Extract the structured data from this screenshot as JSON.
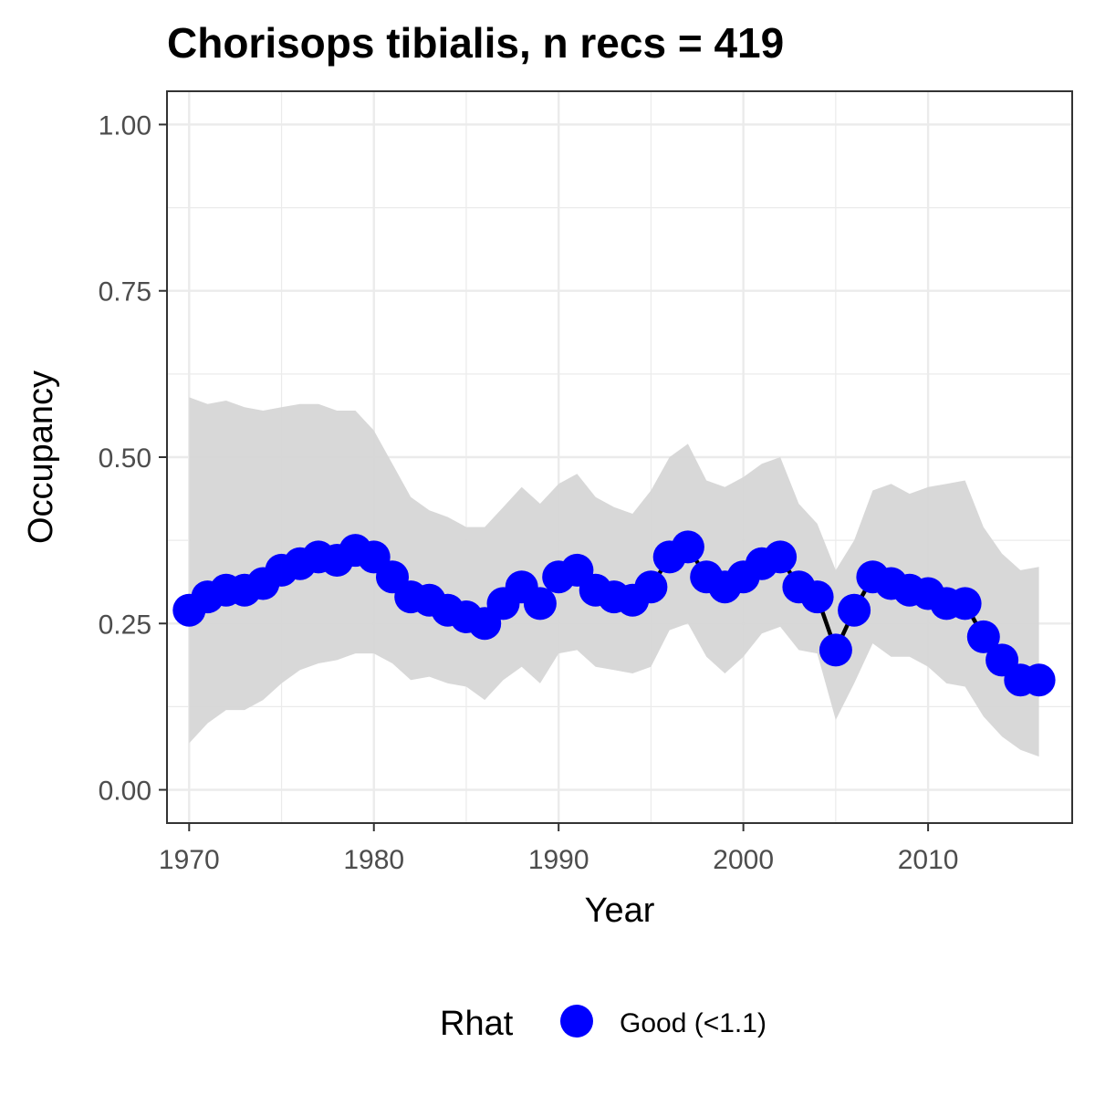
{
  "chart_data": {
    "type": "line",
    "title": "Chorisops tibialis, n recs = 419",
    "xlabel": "Year",
    "ylabel": "Occupancy",
    "xlim": [
      1968.8,
      2017.8
    ],
    "ylim": [
      -0.05,
      1.05
    ],
    "x_ticks": [
      1970,
      1980,
      1990,
      2000,
      2010
    ],
    "x_tick_labels": [
      "1970",
      "1980",
      "1990",
      "2000",
      "2010"
    ],
    "y_ticks": [
      0,
      0.25,
      0.5,
      0.75,
      1
    ],
    "y_tick_labels": [
      "0.00",
      "0.25",
      "0.50",
      "0.75",
      "1.00"
    ],
    "grid": true,
    "legend_position": "bottom",
    "legend": {
      "title": "Rhat",
      "entries": [
        {
          "label": "Good (<1.1)",
          "color": "#0000ff"
        }
      ]
    },
    "colors": {
      "points": "#0000ff",
      "line": "#000000",
      "ribbon": "#d6d6d6",
      "grid": "#ebebeb",
      "panel_border": "#333333"
    },
    "x": [
      1970,
      1971,
      1972,
      1973,
      1974,
      1975,
      1976,
      1977,
      1978,
      1979,
      1980,
      1981,
      1982,
      1983,
      1984,
      1985,
      1986,
      1987,
      1988,
      1989,
      1990,
      1991,
      1992,
      1993,
      1994,
      1995,
      1996,
      1997,
      1998,
      1999,
      2000,
      2001,
      2002,
      2003,
      2004,
      2005,
      2006,
      2007,
      2008,
      2009,
      2010,
      2011,
      2012,
      2013,
      2014,
      2015,
      2016
    ],
    "series": [
      {
        "values": [
          0.27,
          0.29,
          0.3,
          0.3,
          0.31,
          0.33,
          0.34,
          0.35,
          0.345,
          0.36,
          0.35,
          0.32,
          0.29,
          0.285,
          0.27,
          0.26,
          0.25,
          0.28,
          0.305,
          0.28,
          0.32,
          0.33,
          0.3,
          0.29,
          0.285,
          0.305,
          0.35,
          0.365,
          0.32,
          0.305,
          0.32,
          0.34,
          0.35,
          0.305,
          0.29,
          0.21,
          0.27,
          0.32,
          0.31,
          0.3,
          0.295,
          0.28,
          0.28,
          0.23,
          0.195,
          0.165,
          0.165
        ],
        "lower": [
          0.07,
          0.1,
          0.12,
          0.12,
          0.135,
          0.16,
          0.18,
          0.19,
          0.195,
          0.205,
          0.205,
          0.19,
          0.165,
          0.17,
          0.16,
          0.155,
          0.135,
          0.165,
          0.185,
          0.16,
          0.205,
          0.21,
          0.185,
          0.18,
          0.175,
          0.185,
          0.24,
          0.25,
          0.2,
          0.175,
          0.2,
          0.235,
          0.245,
          0.21,
          0.205,
          0.105,
          0.16,
          0.22,
          0.2,
          0.2,
          0.185,
          0.16,
          0.155,
          0.11,
          0.08,
          0.06,
          0.05
        ],
        "upper": [
          0.59,
          0.58,
          0.585,
          0.575,
          0.57,
          0.575,
          0.58,
          0.58,
          0.57,
          0.57,
          0.54,
          0.49,
          0.44,
          0.42,
          0.41,
          0.395,
          0.395,
          0.425,
          0.455,
          0.43,
          0.46,
          0.475,
          0.44,
          0.425,
          0.415,
          0.45,
          0.5,
          0.52,
          0.465,
          0.455,
          0.47,
          0.49,
          0.5,
          0.43,
          0.4,
          0.33,
          0.375,
          0.45,
          0.46,
          0.445,
          0.455,
          0.46,
          0.465,
          0.395,
          0.355,
          0.33,
          0.335
        ]
      }
    ]
  }
}
